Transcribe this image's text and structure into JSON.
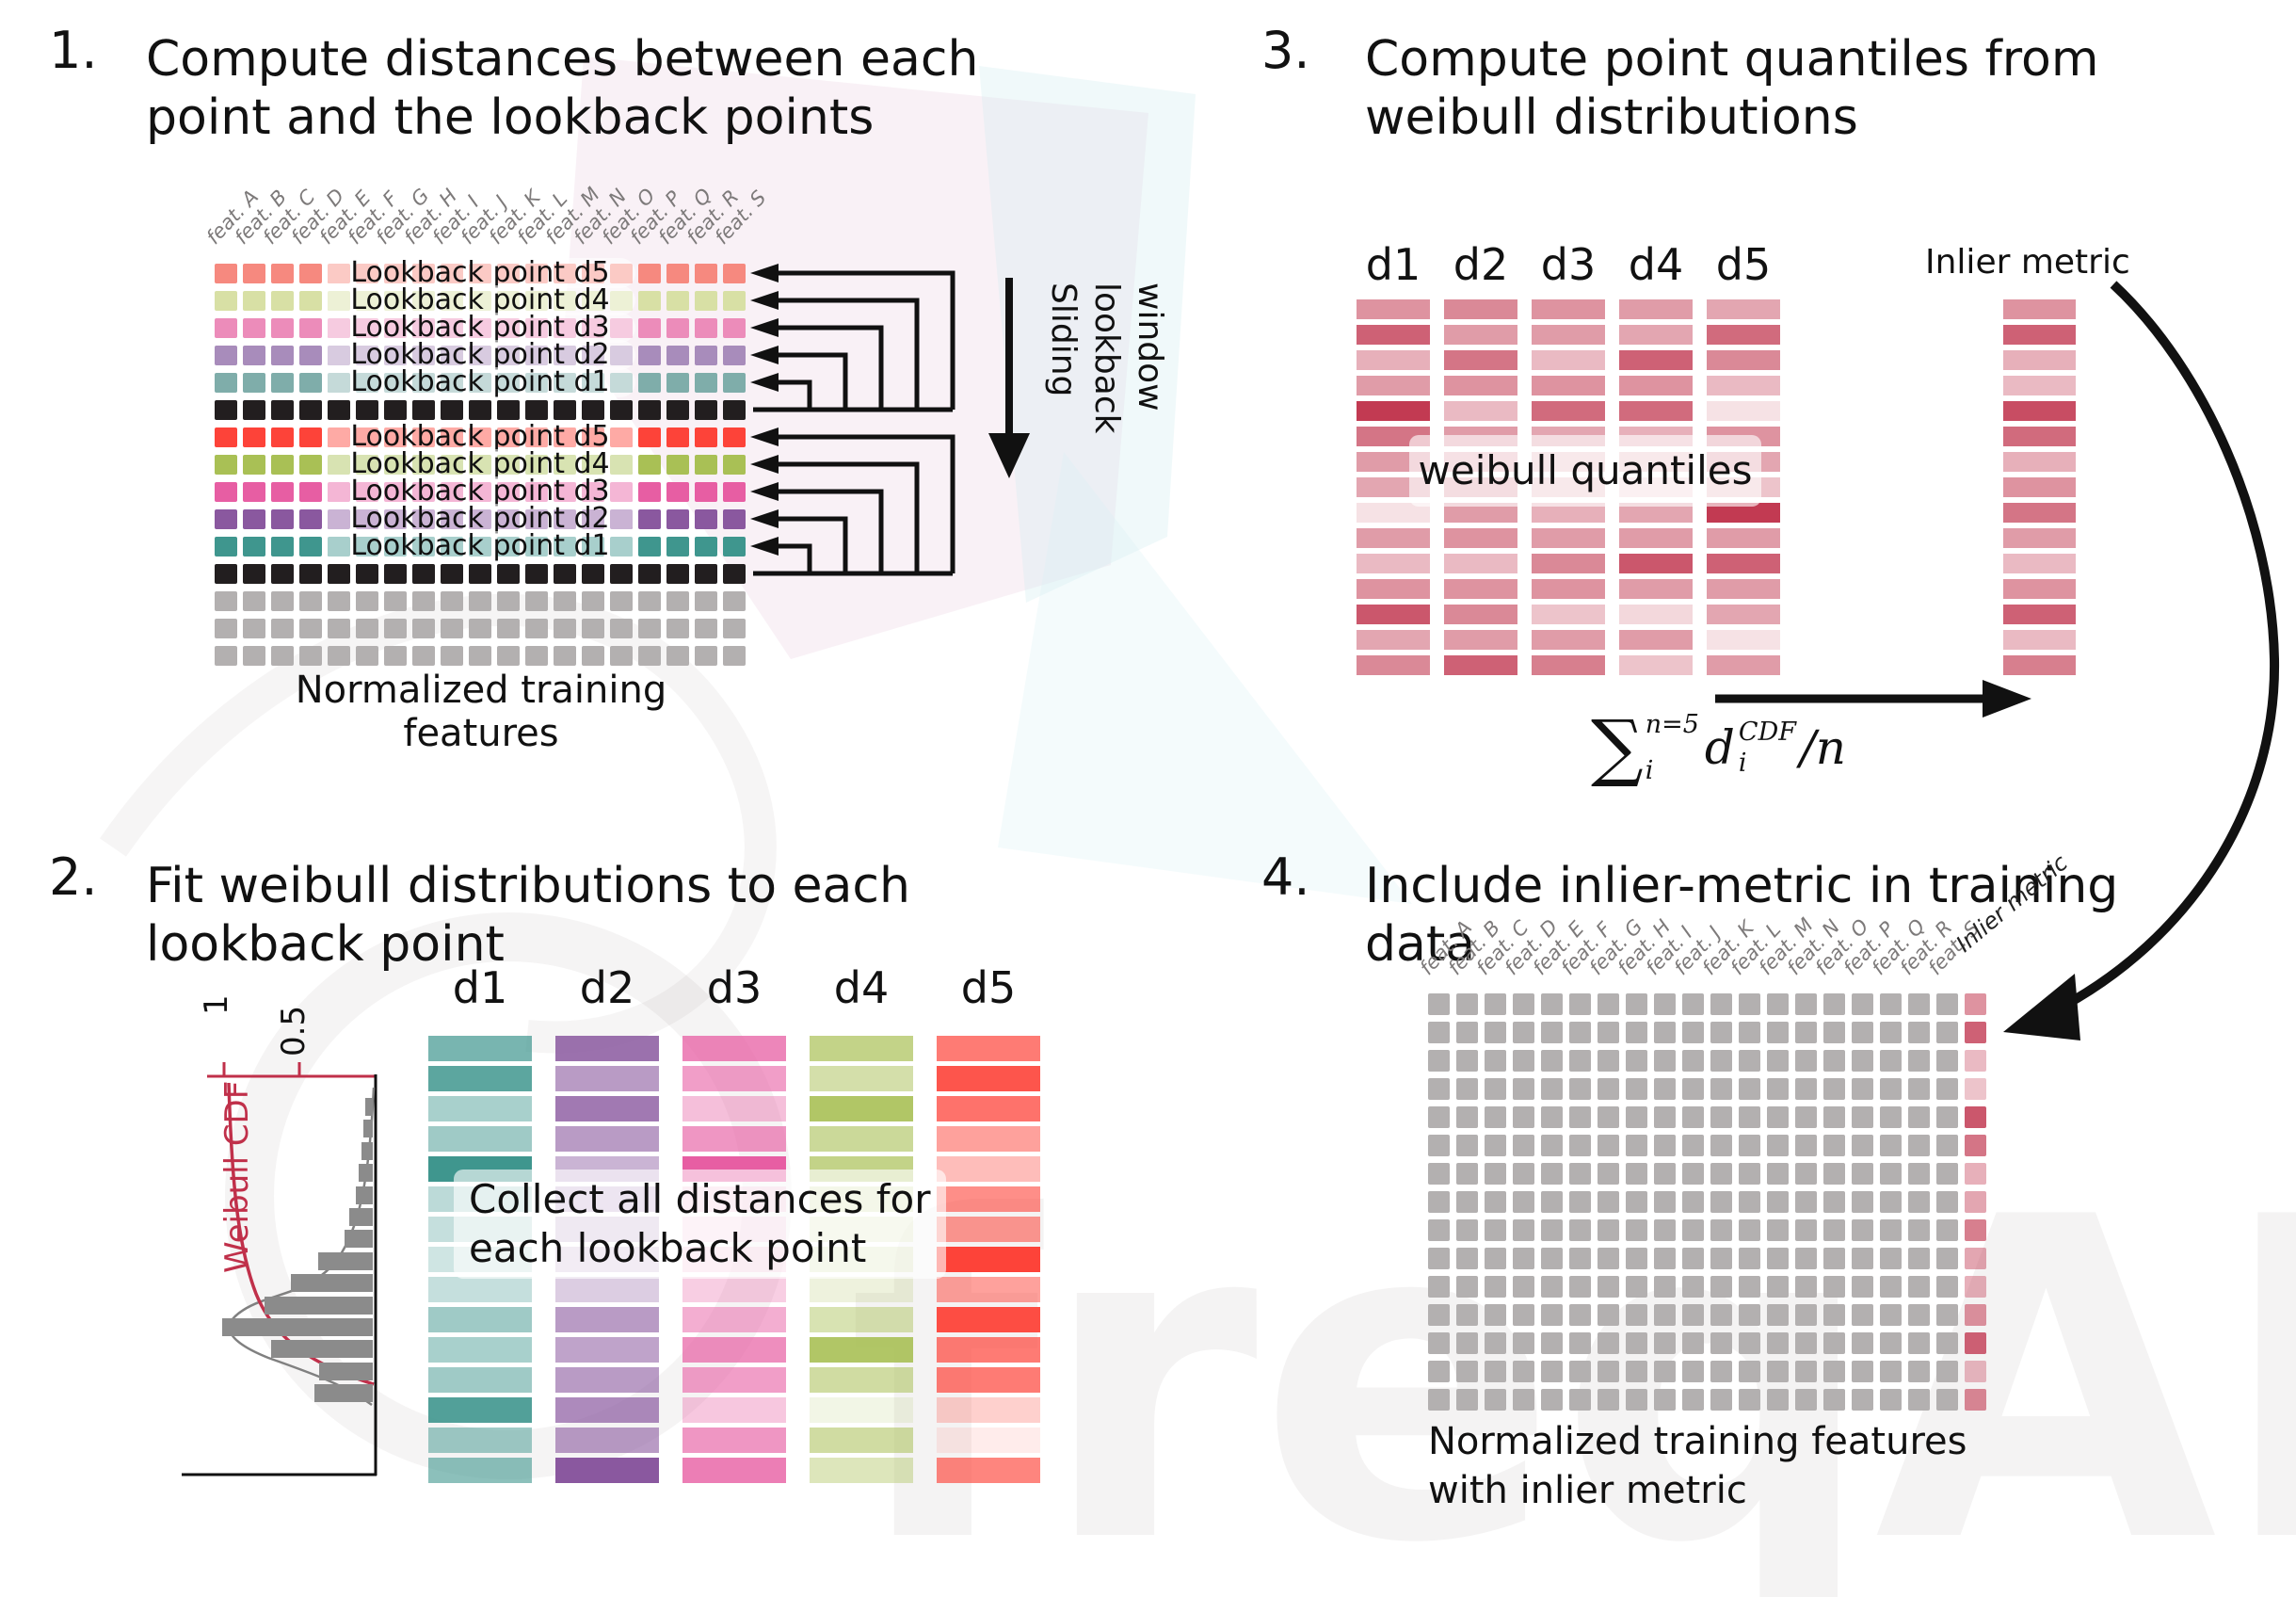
{
  "features": [
    "feat. A",
    "feat. B",
    "feat. C",
    "feat. D",
    "feat. E",
    "feat. F",
    "feat. G",
    "feat. H",
    "feat. I",
    "feat. J",
    "feat. K",
    "feat. L",
    "feat. M",
    "feat. N",
    "feat. O",
    "feat. P",
    "feat. Q",
    "feat. R",
    "feat. S"
  ],
  "watermark": {
    "text": "freqAI"
  },
  "step1": {
    "number": "1.",
    "title_line1": "Compute distances between each",
    "title_line2": "point and the lookback points",
    "caption": "Normalized training features",
    "sliding_words": [
      "Sliding",
      "lookback",
      "window"
    ],
    "rows": [
      {
        "type": "lookback",
        "label": "Lookback point d5",
        "color": "#f6897f"
      },
      {
        "type": "lookback",
        "label": "Lookback point d4",
        "color": "#d8e0a5"
      },
      {
        "type": "lookback",
        "label": "Lookback point d3",
        "color": "#ec8cba"
      },
      {
        "type": "lookback",
        "label": "Lookback point d2",
        "color": "#a88cbb"
      },
      {
        "type": "lookback",
        "label": "Lookback point d1",
        "color": "#7fadaa"
      },
      {
        "type": "black",
        "label": null,
        "color": "#221e1f"
      },
      {
        "type": "lookback",
        "label": "Lookback point d5",
        "color": "#fd4339"
      },
      {
        "type": "lookback",
        "label": "Lookback point d4",
        "color": "#a9c055"
      },
      {
        "type": "lookback",
        "label": "Lookback point d3",
        "color": "#e75ea3"
      },
      {
        "type": "lookback",
        "label": "Lookback point d2",
        "color": "#8a589f"
      },
      {
        "type": "lookback",
        "label": "Lookback point d1",
        "color": "#3f968e"
      },
      {
        "type": "black",
        "label": null,
        "color": "#221e1f"
      },
      {
        "type": "plain",
        "label": null,
        "color": "#b3b0b0"
      },
      {
        "type": "plain",
        "label": null,
        "color": "#b3b0b0"
      },
      {
        "type": "plain",
        "label": null,
        "color": "#b3b0b0"
      }
    ]
  },
  "step2": {
    "number": "2.",
    "title_line1": "Fit weibull distributions to each",
    "title_line2": "lookback point",
    "overlay_line1": "Collect all distances for",
    "overlay_line2": "each lookback point",
    "plot": {
      "ylabel": "Weibull CDF",
      "tick1": "1",
      "tick2": "0.5",
      "axis_color": "#c0304a",
      "bar_color": "#8b8b8b",
      "bar_lengths": [
        8,
        10,
        12,
        15,
        18,
        25,
        30,
        58,
        87,
        115,
        160,
        108,
        57,
        62
      ]
    },
    "columns": [
      {
        "label": "d1",
        "color": "#3f968e",
        "opacities": [
          0.7,
          0.85,
          0.45,
          0.5,
          1.0,
          0.35,
          0.3,
          0.25,
          0.3,
          0.5,
          0.45,
          0.5,
          0.9,
          0.5,
          0.6
        ]
      },
      {
        "label": "d2",
        "color": "#8a589f",
        "opacities": [
          0.85,
          0.6,
          0.8,
          0.6,
          0.45,
          0.4,
          0.35,
          0.3,
          0.3,
          0.6,
          0.55,
          0.6,
          0.7,
          0.6,
          1.0
        ]
      },
      {
        "label": "d3",
        "color": "#e75ea3",
        "opacities": [
          0.75,
          0.6,
          0.4,
          0.65,
          1.0,
          0.25,
          0.2,
          0.25,
          0.3,
          0.5,
          0.7,
          0.6,
          0.35,
          0.65,
          0.8
        ]
      },
      {
        "label": "d4",
        "color": "#a9c055",
        "opacities": [
          0.7,
          0.5,
          0.9,
          0.6,
          0.7,
          0.35,
          0.25,
          0.3,
          0.2,
          0.45,
          0.9,
          0.55,
          0.15,
          0.55,
          0.4
        ]
      },
      {
        "label": "d5",
        "color": "#fd4339",
        "opacities": [
          0.7,
          0.9,
          0.75,
          0.5,
          0.35,
          0.6,
          0.55,
          1.0,
          0.5,
          0.95,
          0.7,
          0.7,
          0.25,
          0.1,
          0.65
        ]
      }
    ]
  },
  "step3": {
    "number": "3.",
    "title_line1": "Compute point quantiles from",
    "title_line2": "weibull distributions",
    "overlay": "weibull quantiles",
    "inlier_label": "Inlier metric",
    "bar_color": "#c23a52",
    "columns": [
      {
        "label": "d1",
        "opacities": [
          0.55,
          0.8,
          0.4,
          0.5,
          1.0,
          0.7,
          0.5,
          0.45,
          0.15,
          0.5,
          0.35,
          0.55,
          0.85,
          0.45,
          0.6
        ]
      },
      {
        "label": "d2",
        "opacities": [
          0.6,
          0.5,
          0.7,
          0.55,
          0.35,
          0.5,
          0.4,
          0.45,
          0.5,
          0.55,
          0.35,
          0.55,
          0.6,
          0.5,
          0.8
        ]
      },
      {
        "label": "d3",
        "opacities": [
          0.55,
          0.5,
          0.35,
          0.55,
          0.75,
          0.45,
          0.3,
          0.3,
          0.4,
          0.5,
          0.6,
          0.55,
          0.3,
          0.5,
          0.65
        ]
      },
      {
        "label": "d4",
        "opacities": [
          0.5,
          0.45,
          0.8,
          0.55,
          0.75,
          0.4,
          0.3,
          0.2,
          0.45,
          0.5,
          0.85,
          0.5,
          0.2,
          0.5,
          0.3
        ]
      },
      {
        "label": "d5",
        "opacities": [
          0.45,
          0.75,
          0.6,
          0.35,
          0.15,
          0.55,
          0.45,
          0.3,
          1.0,
          0.5,
          0.8,
          0.5,
          0.45,
          0.15,
          0.5
        ]
      }
    ],
    "inlier_opacities": [
      0.55,
      0.8,
      0.4,
      0.35,
      0.9,
      0.75,
      0.4,
      0.55,
      0.7,
      0.5,
      0.35,
      0.55,
      0.8,
      0.35,
      0.65
    ],
    "formula": {
      "sum": "∑",
      "sum_sup": "n=5",
      "sum_sub": "i",
      "var": "d",
      "var_sup": "CDF",
      "var_sub": "i",
      "tail": "/n"
    }
  },
  "step4": {
    "number": "4.",
    "title_line1": "Include inlier-metric in training",
    "title_line2": "data",
    "caption_line1": "Normalized training features",
    "caption_line2": "with inlier metric",
    "inlier_label": "Inlier metric",
    "cell_color": "#b3b0b0",
    "rows": 15,
    "inlier_opacities": [
      0.55,
      0.8,
      0.35,
      0.3,
      0.85,
      0.7,
      0.4,
      0.45,
      0.65,
      0.45,
      0.4,
      0.55,
      0.8,
      0.35,
      0.6
    ]
  }
}
